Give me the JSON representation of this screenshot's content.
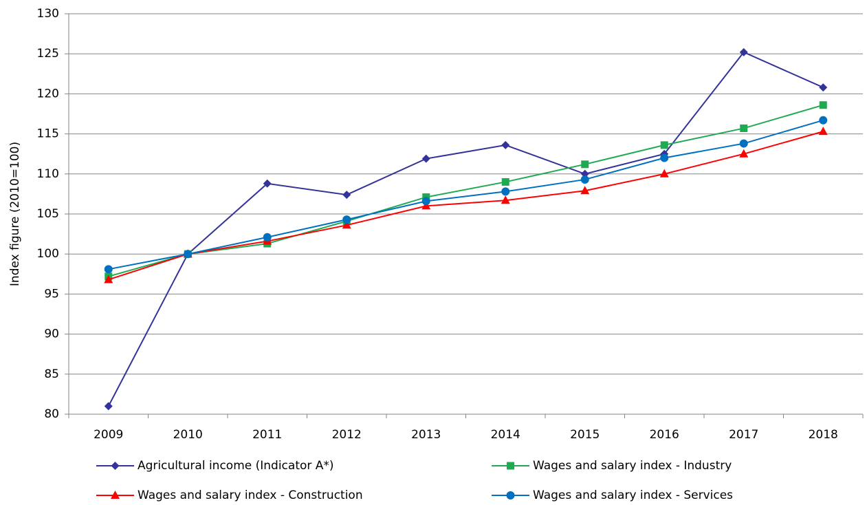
{
  "chart_data": {
    "type": "line",
    "y_label": "Index figure (2010=100)",
    "categories": [
      "2009",
      "2010",
      "2011",
      "2012",
      "2013",
      "2014",
      "2015",
      "2016",
      "2017",
      "2018"
    ],
    "series": [
      {
        "name": "Agricultural income (Indicator A*)",
        "color": "#333399",
        "marker": "diamond",
        "values": [
          81.0,
          100,
          108.8,
          107.4,
          111.9,
          113.6,
          110.0,
          112.5,
          125.2,
          120.8
        ]
      },
      {
        "name": "Wages and salary index - Industry",
        "color": "#1faa52",
        "marker": "square",
        "values": [
          97.2,
          100,
          101.3,
          104.1,
          107.1,
          109.0,
          111.2,
          113.6,
          115.7,
          118.6
        ]
      },
      {
        "name": "Wages and salary index - Construction",
        "color": "#ff0000",
        "marker": "triangle",
        "values": [
          96.8,
          100,
          101.6,
          103.6,
          106.0,
          106.7,
          107.9,
          110.0,
          112.5,
          115.3
        ]
      },
      {
        "name": "Wages and salary index - Services",
        "color": "#0070c0",
        "marker": "circle",
        "values": [
          98.1,
          100,
          102.1,
          104.3,
          106.6,
          107.8,
          109.3,
          112.0,
          113.8,
          116.7
        ]
      }
    ],
    "ylim": [
      80,
      130
    ],
    "yticks": [
      80,
      85,
      90,
      95,
      100,
      105,
      110,
      115,
      120,
      125,
      130
    ],
    "grid": true
  }
}
